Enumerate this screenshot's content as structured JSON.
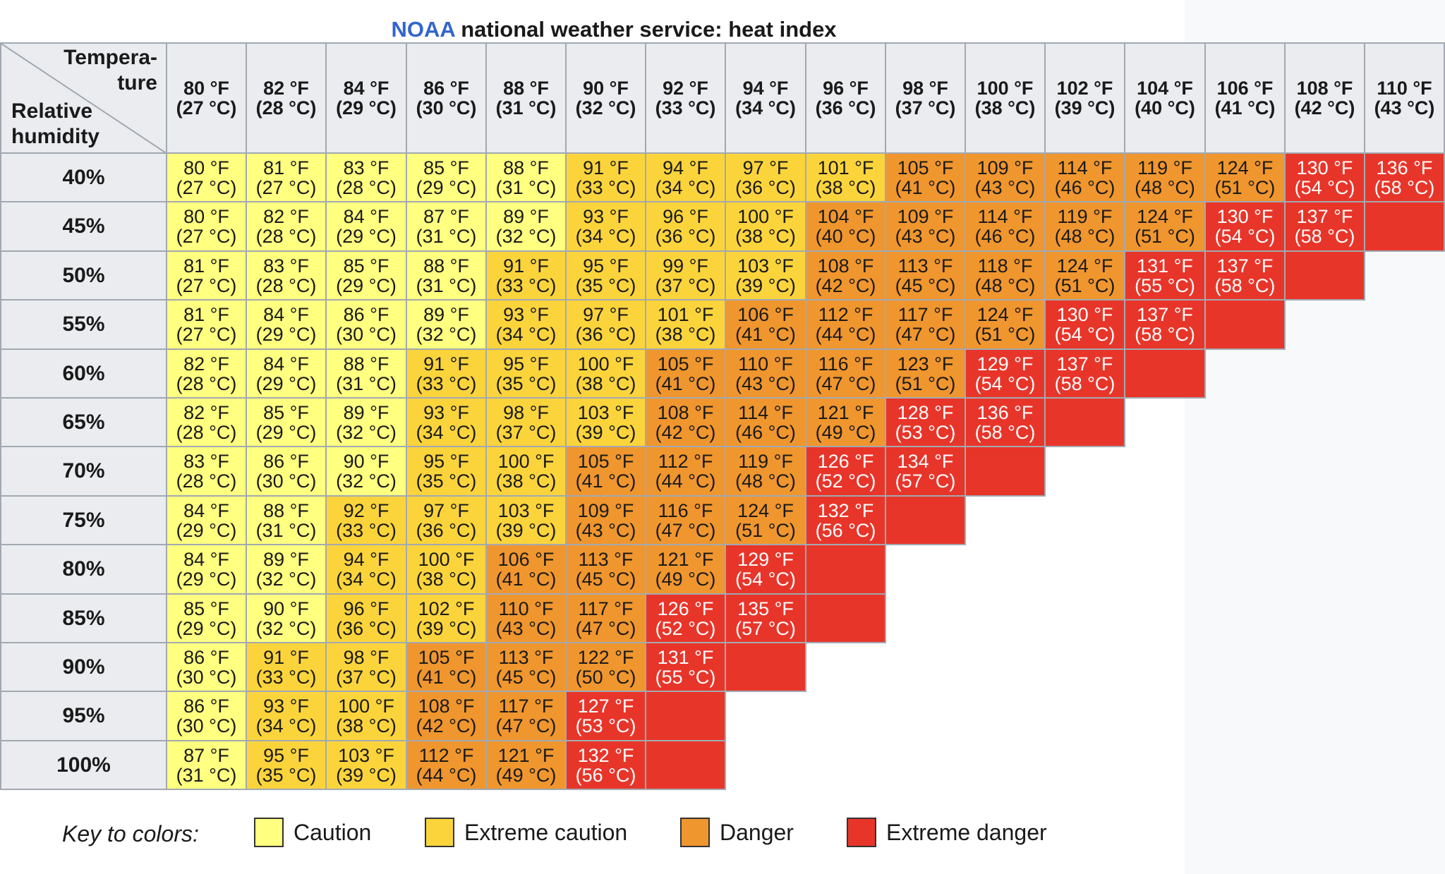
{
  "title": {
    "brand": "NOAA",
    "rest": "national weather service: heat index"
  },
  "corner": {
    "temperature_label": [
      "Tempera-",
      "ture"
    ],
    "humidity_label": [
      "Relative",
      "humidity"
    ]
  },
  "colors": {
    "caution": "#ffff80",
    "extreme_caution": "#fbd43c",
    "danger": "#f0962e",
    "extreme_danger": "#e8352a",
    "header_bg": "#eaecf0",
    "grid_line": "#a2a9b1",
    "brand": "#3366cc"
  },
  "legend": {
    "title": "Key to colors:",
    "items": [
      {
        "key": "caution",
        "label": "Caution"
      },
      {
        "key": "extreme_caution",
        "label": "Extreme caution"
      },
      {
        "key": "danger",
        "label": "Danger"
      },
      {
        "key": "extreme_danger",
        "label": "Extreme danger"
      }
    ]
  },
  "chart_data": {
    "type": "table",
    "title": "NOAA national weather service: heat index",
    "columns": [
      {
        "f": "80 °F",
        "c": "(27 °C)"
      },
      {
        "f": "82 °F",
        "c": "(28 °C)"
      },
      {
        "f": "84 °F",
        "c": "(29 °C)"
      },
      {
        "f": "86 °F",
        "c": "(30 °C)"
      },
      {
        "f": "88 °F",
        "c": "(31 °C)"
      },
      {
        "f": "90 °F",
        "c": "(32 °C)"
      },
      {
        "f": "92 °F",
        "c": "(33 °C)"
      },
      {
        "f": "94 °F",
        "c": "(34 °C)"
      },
      {
        "f": "96 °F",
        "c": "(36 °C)"
      },
      {
        "f": "98 °F",
        "c": "(37 °C)"
      },
      {
        "f": "100 °F",
        "c": "(38 °C)"
      },
      {
        "f": "102 °F",
        "c": "(39 °C)"
      },
      {
        "f": "104 °F",
        "c": "(40 °C)"
      },
      {
        "f": "106 °F",
        "c": "(41 °C)"
      },
      {
        "f": "108 °F",
        "c": "(42 °C)"
      },
      {
        "f": "110 °F",
        "c": "(43 °C)"
      }
    ],
    "rows": [
      {
        "label": "40%",
        "cells": [
          {
            "f": "80 °F",
            "c": "(27 °C)",
            "cat": "caution"
          },
          {
            "f": "81 °F",
            "c": "(27 °C)",
            "cat": "caution"
          },
          {
            "f": "83 °F",
            "c": "(28 °C)",
            "cat": "caution"
          },
          {
            "f": "85 °F",
            "c": "(29 °C)",
            "cat": "caution"
          },
          {
            "f": "88 °F",
            "c": "(31 °C)",
            "cat": "caution"
          },
          {
            "f": "91 °F",
            "c": "(33 °C)",
            "cat": "extreme_caution"
          },
          {
            "f": "94 °F",
            "c": "(34 °C)",
            "cat": "extreme_caution"
          },
          {
            "f": "97 °F",
            "c": "(36 °C)",
            "cat": "extreme_caution"
          },
          {
            "f": "101 °F",
            "c": "(38 °C)",
            "cat": "extreme_caution"
          },
          {
            "f": "105 °F",
            "c": "(41 °C)",
            "cat": "danger"
          },
          {
            "f": "109 °F",
            "c": "(43 °C)",
            "cat": "danger"
          },
          {
            "f": "114 °F",
            "c": "(46 °C)",
            "cat": "danger"
          },
          {
            "f": "119 °F",
            "c": "(48 °C)",
            "cat": "danger"
          },
          {
            "f": "124 °F",
            "c": "(51 °C)",
            "cat": "danger"
          },
          {
            "f": "130 °F",
            "c": "(54 °C)",
            "cat": "extreme_danger"
          },
          {
            "f": "136 °F",
            "c": "(58 °C)",
            "cat": "extreme_danger"
          }
        ]
      },
      {
        "label": "45%",
        "cells": [
          {
            "f": "80 °F",
            "c": "(27 °C)",
            "cat": "caution"
          },
          {
            "f": "82 °F",
            "c": "(28 °C)",
            "cat": "caution"
          },
          {
            "f": "84 °F",
            "c": "(29 °C)",
            "cat": "caution"
          },
          {
            "f": "87 °F",
            "c": "(31 °C)",
            "cat": "caution"
          },
          {
            "f": "89 °F",
            "c": "(32 °C)",
            "cat": "caution"
          },
          {
            "f": "93 °F",
            "c": "(34 °C)",
            "cat": "extreme_caution"
          },
          {
            "f": "96 °F",
            "c": "(36 °C)",
            "cat": "extreme_caution"
          },
          {
            "f": "100 °F",
            "c": "(38 °C)",
            "cat": "extreme_caution"
          },
          {
            "f": "104 °F",
            "c": "(40 °C)",
            "cat": "danger"
          },
          {
            "f": "109 °F",
            "c": "(43 °C)",
            "cat": "danger"
          },
          {
            "f": "114 °F",
            "c": "(46 °C)",
            "cat": "danger"
          },
          {
            "f": "119 °F",
            "c": "(48 °C)",
            "cat": "danger"
          },
          {
            "f": "124 °F",
            "c": "(51 °C)",
            "cat": "danger"
          },
          {
            "f": "130 °F",
            "c": "(54 °C)",
            "cat": "extreme_danger"
          },
          {
            "f": "137 °F",
            "c": "(58 °C)",
            "cat": "extreme_danger"
          },
          {
            "f": "",
            "c": "",
            "cat": "extreme_danger"
          }
        ]
      },
      {
        "label": "50%",
        "cells": [
          {
            "f": "81 °F",
            "c": "(27 °C)",
            "cat": "caution"
          },
          {
            "f": "83 °F",
            "c": "(28 °C)",
            "cat": "caution"
          },
          {
            "f": "85 °F",
            "c": "(29 °C)",
            "cat": "caution"
          },
          {
            "f": "88 °F",
            "c": "(31 °C)",
            "cat": "caution"
          },
          {
            "f": "91 °F",
            "c": "(33 °C)",
            "cat": "extreme_caution"
          },
          {
            "f": "95 °F",
            "c": "(35 °C)",
            "cat": "extreme_caution"
          },
          {
            "f": "99 °F",
            "c": "(37 °C)",
            "cat": "extreme_caution"
          },
          {
            "f": "103 °F",
            "c": "(39 °C)",
            "cat": "extreme_caution"
          },
          {
            "f": "108 °F",
            "c": "(42 °C)",
            "cat": "danger"
          },
          {
            "f": "113 °F",
            "c": "(45 °C)",
            "cat": "danger"
          },
          {
            "f": "118 °F",
            "c": "(48 °C)",
            "cat": "danger"
          },
          {
            "f": "124 °F",
            "c": "(51 °C)",
            "cat": "danger"
          },
          {
            "f": "131 °F",
            "c": "(55 °C)",
            "cat": "extreme_danger"
          },
          {
            "f": "137 °F",
            "c": "(58 °C)",
            "cat": "extreme_danger"
          },
          {
            "f": "",
            "c": "",
            "cat": "extreme_danger"
          }
        ]
      },
      {
        "label": "55%",
        "cells": [
          {
            "f": "81 °F",
            "c": "(27 °C)",
            "cat": "caution"
          },
          {
            "f": "84 °F",
            "c": "(29 °C)",
            "cat": "caution"
          },
          {
            "f": "86 °F",
            "c": "(30 °C)",
            "cat": "caution"
          },
          {
            "f": "89 °F",
            "c": "(32 °C)",
            "cat": "caution"
          },
          {
            "f": "93 °F",
            "c": "(34 °C)",
            "cat": "extreme_caution"
          },
          {
            "f": "97 °F",
            "c": "(36 °C)",
            "cat": "extreme_caution"
          },
          {
            "f": "101 °F",
            "c": "(38 °C)",
            "cat": "extreme_caution"
          },
          {
            "f": "106 °F",
            "c": "(41 °C)",
            "cat": "danger"
          },
          {
            "f": "112 °F",
            "c": "(44 °C)",
            "cat": "danger"
          },
          {
            "f": "117 °F",
            "c": "(47 °C)",
            "cat": "danger"
          },
          {
            "f": "124 °F",
            "c": "(51 °C)",
            "cat": "danger"
          },
          {
            "f": "130 °F",
            "c": "(54 °C)",
            "cat": "extreme_danger"
          },
          {
            "f": "137 °F",
            "c": "(58 °C)",
            "cat": "extreme_danger"
          },
          {
            "f": "",
            "c": "",
            "cat": "extreme_danger"
          }
        ]
      },
      {
        "label": "60%",
        "cells": [
          {
            "f": "82 °F",
            "c": "(28 °C)",
            "cat": "caution"
          },
          {
            "f": "84 °F",
            "c": "(29 °C)",
            "cat": "caution"
          },
          {
            "f": "88 °F",
            "c": "(31 °C)",
            "cat": "caution"
          },
          {
            "f": "91 °F",
            "c": "(33 °C)",
            "cat": "extreme_caution"
          },
          {
            "f": "95 °F",
            "c": "(35 °C)",
            "cat": "extreme_caution"
          },
          {
            "f": "100 °F",
            "c": "(38 °C)",
            "cat": "extreme_caution"
          },
          {
            "f": "105 °F",
            "c": "(41 °C)",
            "cat": "danger"
          },
          {
            "f": "110 °F",
            "c": "(43 °C)",
            "cat": "danger"
          },
          {
            "f": "116 °F",
            "c": "(47 °C)",
            "cat": "danger"
          },
          {
            "f": "123 °F",
            "c": "(51 °C)",
            "cat": "danger"
          },
          {
            "f": "129 °F",
            "c": "(54 °C)",
            "cat": "extreme_danger"
          },
          {
            "f": "137 °F",
            "c": "(58 °C)",
            "cat": "extreme_danger"
          },
          {
            "f": "",
            "c": "",
            "cat": "extreme_danger"
          }
        ]
      },
      {
        "label": "65%",
        "cells": [
          {
            "f": "82 °F",
            "c": "(28 °C)",
            "cat": "caution"
          },
          {
            "f": "85 °F",
            "c": "(29 °C)",
            "cat": "caution"
          },
          {
            "f": "89 °F",
            "c": "(32 °C)",
            "cat": "caution"
          },
          {
            "f": "93 °F",
            "c": "(34 °C)",
            "cat": "extreme_caution"
          },
          {
            "f": "98 °F",
            "c": "(37 °C)",
            "cat": "extreme_caution"
          },
          {
            "f": "103 °F",
            "c": "(39 °C)",
            "cat": "extreme_caution"
          },
          {
            "f": "108 °F",
            "c": "(42 °C)",
            "cat": "danger"
          },
          {
            "f": "114 °F",
            "c": "(46 °C)",
            "cat": "danger"
          },
          {
            "f": "121 °F",
            "c": "(49 °C)",
            "cat": "danger"
          },
          {
            "f": "128 °F",
            "c": "(53 °C)",
            "cat": "extreme_danger"
          },
          {
            "f": "136 °F",
            "c": "(58 °C)",
            "cat": "extreme_danger"
          },
          {
            "f": "",
            "c": "",
            "cat": "extreme_danger"
          }
        ]
      },
      {
        "label": "70%",
        "cells": [
          {
            "f": "83 °F",
            "c": "(28 °C)",
            "cat": "caution"
          },
          {
            "f": "86 °F",
            "c": "(30 °C)",
            "cat": "caution"
          },
          {
            "f": "90 °F",
            "c": "(32 °C)",
            "cat": "caution"
          },
          {
            "f": "95 °F",
            "c": "(35 °C)",
            "cat": "extreme_caution"
          },
          {
            "f": "100 °F",
            "c": "(38 °C)",
            "cat": "extreme_caution"
          },
          {
            "f": "105 °F",
            "c": "(41 °C)",
            "cat": "danger"
          },
          {
            "f": "112 °F",
            "c": "(44 °C)",
            "cat": "danger"
          },
          {
            "f": "119 °F",
            "c": "(48 °C)",
            "cat": "danger"
          },
          {
            "f": "126 °F",
            "c": "(52 °C)",
            "cat": "extreme_danger"
          },
          {
            "f": "134 °F",
            "c": "(57 °C)",
            "cat": "extreme_danger"
          },
          {
            "f": "",
            "c": "",
            "cat": "extreme_danger"
          }
        ]
      },
      {
        "label": "75%",
        "cells": [
          {
            "f": "84 °F",
            "c": "(29 °C)",
            "cat": "caution"
          },
          {
            "f": "88 °F",
            "c": "(31 °C)",
            "cat": "caution"
          },
          {
            "f": "92 °F",
            "c": "(33 °C)",
            "cat": "extreme_caution"
          },
          {
            "f": "97 °F",
            "c": "(36 °C)",
            "cat": "extreme_caution"
          },
          {
            "f": "103 °F",
            "c": "(39 °C)",
            "cat": "extreme_caution"
          },
          {
            "f": "109 °F",
            "c": "(43 °C)",
            "cat": "danger"
          },
          {
            "f": "116 °F",
            "c": "(47 °C)",
            "cat": "danger"
          },
          {
            "f": "124 °F",
            "c": "(51 °C)",
            "cat": "danger"
          },
          {
            "f": "132 °F",
            "c": "(56 °C)",
            "cat": "extreme_danger"
          },
          {
            "f": "",
            "c": "",
            "cat": "extreme_danger"
          }
        ]
      },
      {
        "label": "80%",
        "cells": [
          {
            "f": "84 °F",
            "c": "(29 °C)",
            "cat": "caution"
          },
          {
            "f": "89 °F",
            "c": "(32 °C)",
            "cat": "caution"
          },
          {
            "f": "94 °F",
            "c": "(34 °C)",
            "cat": "extreme_caution"
          },
          {
            "f": "100 °F",
            "c": "(38 °C)",
            "cat": "extreme_caution"
          },
          {
            "f": "106 °F",
            "c": "(41 °C)",
            "cat": "danger"
          },
          {
            "f": "113 °F",
            "c": "(45 °C)",
            "cat": "danger"
          },
          {
            "f": "121 °F",
            "c": "(49 °C)",
            "cat": "danger"
          },
          {
            "f": "129 °F",
            "c": "(54 °C)",
            "cat": "extreme_danger"
          },
          {
            "f": "",
            "c": "",
            "cat": "extreme_danger"
          }
        ]
      },
      {
        "label": "85%",
        "cells": [
          {
            "f": "85 °F",
            "c": "(29 °C)",
            "cat": "caution"
          },
          {
            "f": "90 °F",
            "c": "(32 °C)",
            "cat": "caution"
          },
          {
            "f": "96 °F",
            "c": "(36 °C)",
            "cat": "extreme_caution"
          },
          {
            "f": "102 °F",
            "c": "(39 °C)",
            "cat": "extreme_caution"
          },
          {
            "f": "110 °F",
            "c": "(43 °C)",
            "cat": "danger"
          },
          {
            "f": "117 °F",
            "c": "(47 °C)",
            "cat": "danger"
          },
          {
            "f": "126 °F",
            "c": "(52 °C)",
            "cat": "extreme_danger"
          },
          {
            "f": "135 °F",
            "c": "(57 °C)",
            "cat": "extreme_danger"
          },
          {
            "f": "",
            "c": "",
            "cat": "extreme_danger"
          }
        ]
      },
      {
        "label": "90%",
        "cells": [
          {
            "f": "86 °F",
            "c": "(30 °C)",
            "cat": "caution"
          },
          {
            "f": "91 °F",
            "c": "(33 °C)",
            "cat": "extreme_caution"
          },
          {
            "f": "98 °F",
            "c": "(37 °C)",
            "cat": "extreme_caution"
          },
          {
            "f": "105 °F",
            "c": "(41 °C)",
            "cat": "danger"
          },
          {
            "f": "113 °F",
            "c": "(45 °C)",
            "cat": "danger"
          },
          {
            "f": "122 °F",
            "c": "(50 °C)",
            "cat": "danger"
          },
          {
            "f": "131 °F",
            "c": "(55 °C)",
            "cat": "extreme_danger"
          },
          {
            "f": "",
            "c": "",
            "cat": "extreme_danger"
          }
        ]
      },
      {
        "label": "95%",
        "cells": [
          {
            "f": "86 °F",
            "c": "(30 °C)",
            "cat": "caution"
          },
          {
            "f": "93 °F",
            "c": "(34 °C)",
            "cat": "extreme_caution"
          },
          {
            "f": "100 °F",
            "c": "(38 °C)",
            "cat": "extreme_caution"
          },
          {
            "f": "108 °F",
            "c": "(42 °C)",
            "cat": "danger"
          },
          {
            "f": "117 °F",
            "c": "(47 °C)",
            "cat": "danger"
          },
          {
            "f": "127 °F",
            "c": "(53 °C)",
            "cat": "extreme_danger"
          },
          {
            "f": "",
            "c": "",
            "cat": "extreme_danger"
          }
        ]
      },
      {
        "label": "100%",
        "cells": [
          {
            "f": "87 °F",
            "c": "(31 °C)",
            "cat": "caution"
          },
          {
            "f": "95 °F",
            "c": "(35 °C)",
            "cat": "extreme_caution"
          },
          {
            "f": "103 °F",
            "c": "(39 °C)",
            "cat": "extreme_caution"
          },
          {
            "f": "112 °F",
            "c": "(44 °C)",
            "cat": "danger"
          },
          {
            "f": "121 °F",
            "c": "(49 °C)",
            "cat": "danger"
          },
          {
            "f": "132 °F",
            "c": "(56 °C)",
            "cat": "extreme_danger"
          },
          {
            "f": "",
            "c": "",
            "cat": "extreme_danger"
          }
        ]
      }
    ]
  }
}
